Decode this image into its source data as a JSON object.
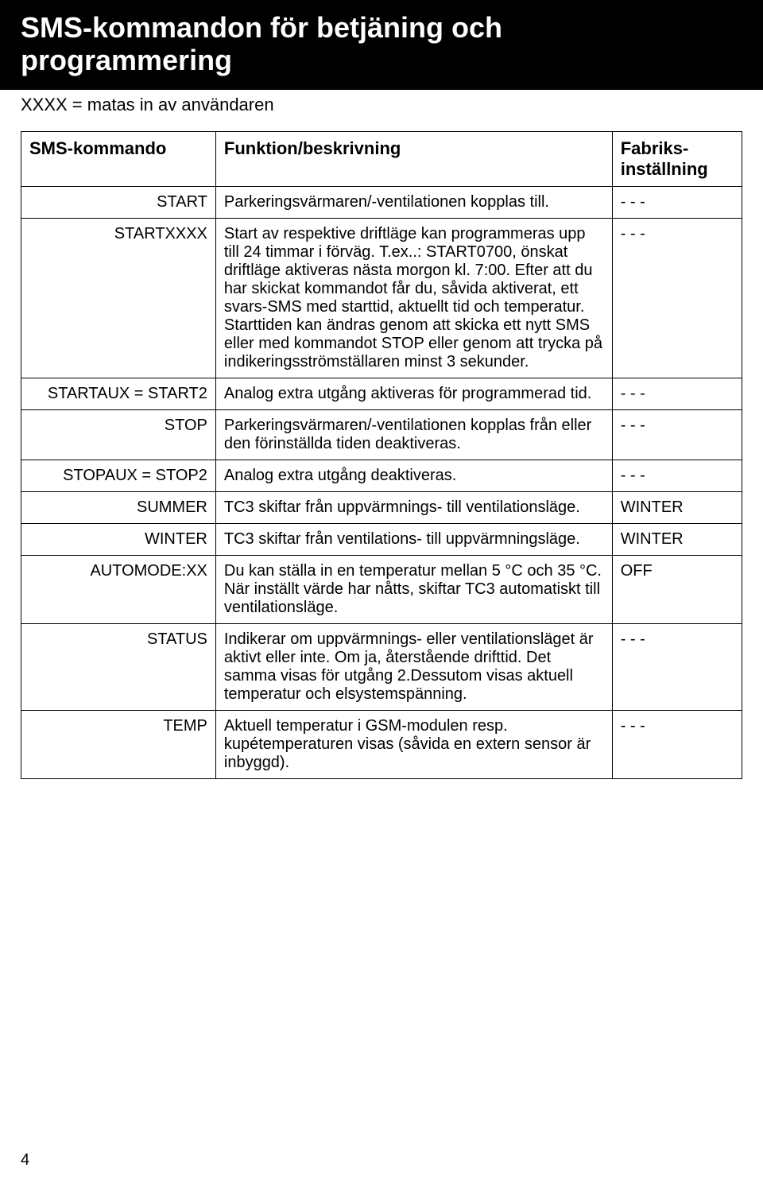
{
  "header": {
    "title_line1": "SMS-kommandon för betjäning och",
    "title_line2": "programmering",
    "title_fontsize": 36,
    "header_bg": "#000000",
    "header_fg": "#ffffff"
  },
  "subtitle": "XXXX = matas in av användaren",
  "subtitle_fontsize": 22,
  "table": {
    "body_fontsize": 20,
    "header_fontsize": 22,
    "columns": [
      "SMS-kommando",
      "Funktion/beskrivning",
      "Fabriks-inställning"
    ],
    "col_widths_pct": [
      27,
      55,
      18
    ],
    "border_color": "#000000",
    "rows": [
      {
        "cmd": "START",
        "desc": "Parkeringsvärmaren/-ventilationen kopplas till.",
        "def": "- - -"
      },
      {
        "cmd": "STARTXXXX",
        "desc": "Start av respektive driftläge kan programmeras upp till 24 timmar i förväg. T.ex..: START0700, önskat driftläge aktiveras nästa morgon kl. 7:00. Efter att du har skickat kommandot får du, såvida aktiverat, ett svars-SMS med starttid, aktuellt tid och temperatur. Starttiden kan ändras genom att skicka ett nytt SMS eller med kommandot STOP eller genom att trycka på indikeringsströmställaren minst 3 sekunder.",
        "def": "- - -"
      },
      {
        "cmd": "STARTAUX = START2",
        "desc": "Analog extra utgång aktiveras för programmerad tid.",
        "def": "- - -"
      },
      {
        "cmd": "STOP",
        "desc": "Parkeringsvärmaren/-ventilationen kopplas från eller den förinställda tiden deaktiveras.",
        "def": "- - -"
      },
      {
        "cmd": "STOPAUX = STOP2",
        "desc": "Analog extra utgång deaktiveras.",
        "def": "- - -"
      },
      {
        "cmd": "SUMMER",
        "desc": "TC3 skiftar från uppvärmnings- till ventilationsläge.",
        "def": "WINTER"
      },
      {
        "cmd": "WINTER",
        "desc": "TC3 skiftar från ventilations- till uppvärmningsläge.",
        "def": "WINTER"
      },
      {
        "cmd": "AUTOMODE:XX",
        "desc": "Du kan ställa in en temperatur mellan 5 °C och 35 °C. När inställt värde har nåtts, skiftar TC3 automatiskt till ventilationsläge.",
        "def": "OFF"
      },
      {
        "cmd": "STATUS",
        "desc": "Indikerar om uppvärmnings- eller ventilationsläget är aktivt eller inte. Om ja, återstående drifttid. Det samma visas för utgång 2.Dessutom visas aktuell temperatur och elsystemspänning.",
        "def": "- - -"
      },
      {
        "cmd": "TEMP",
        "desc": "Aktuell temperatur i GSM-modulen resp. kupétemperaturen visas (såvida en extern sensor är inbyggd).",
        "def": "- - -"
      }
    ]
  },
  "page_number": "4",
  "page_number_fontsize": 20
}
